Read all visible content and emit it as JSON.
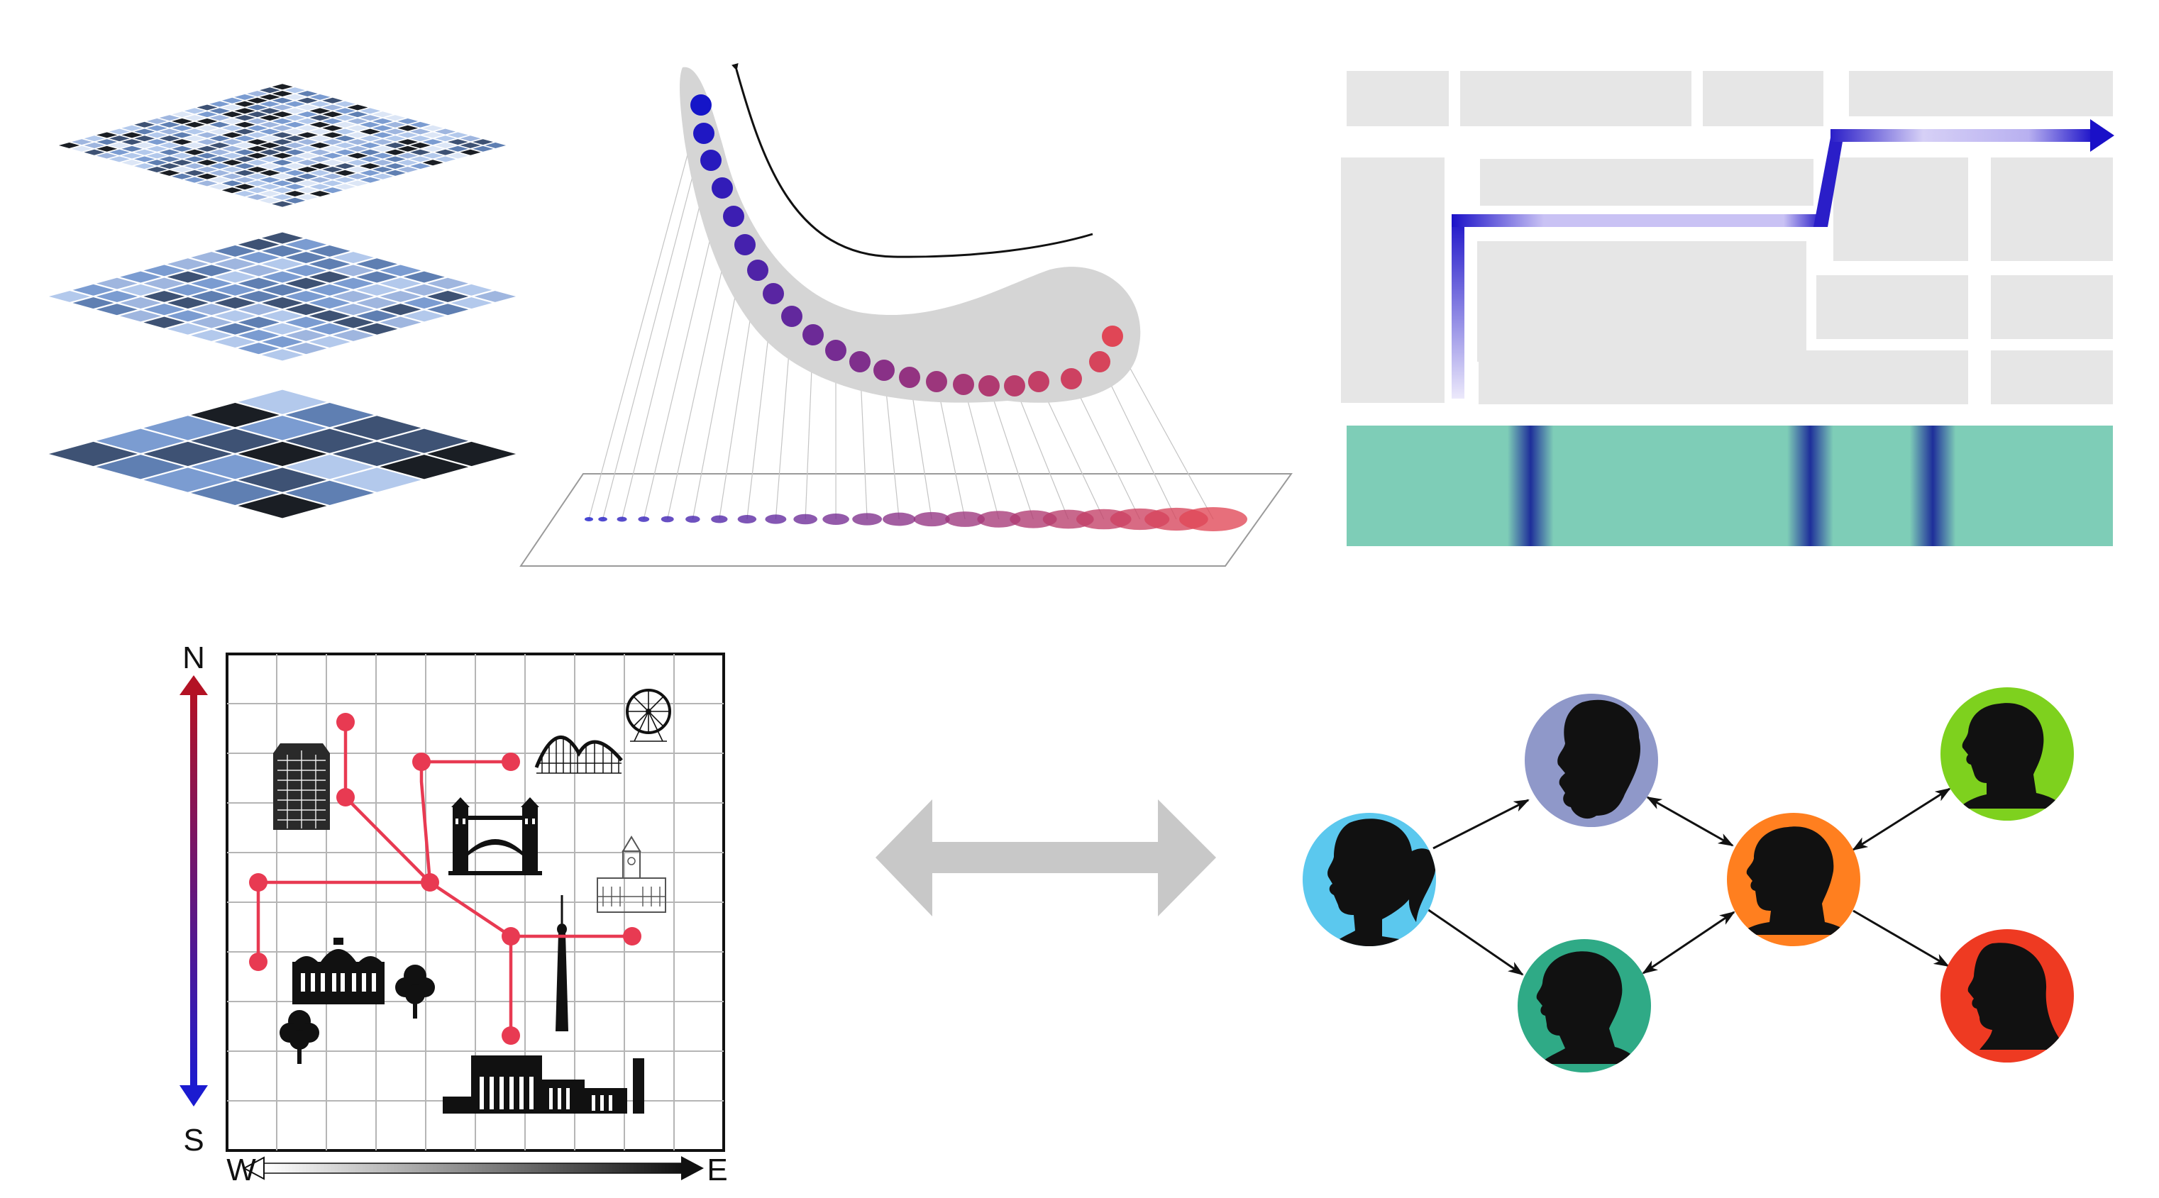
{
  "compass": {
    "north": "N",
    "south": "S",
    "west": "W",
    "east": "E"
  },
  "colors": {
    "tile_light": "#b3c9ec",
    "tile_mid": "#7b9cd1",
    "tile_dark": "#3e5274",
    "tile_black": "#1a1e24",
    "curve_start": "#1515c8",
    "curve_end": "#e04656",
    "road_gray": "#e6e6e6",
    "route_dark": "#1a10c8",
    "route_light": "#c9c2f4",
    "strip_green": "#7ecdb7",
    "strip_band": "#1e2f9a",
    "map_route": "#e83a52",
    "axis_north": "#b31224",
    "axis_south": "#1b1bd0",
    "bidirectional_arrow": "#c8c8c8",
    "person_blue": "#5bc8ee",
    "person_lavender": "#8f98c9",
    "person_orange": "#ff7f1f",
    "person_green": "#7ed11e",
    "person_teal": "#2faa86",
    "person_red": "#ee3a22"
  },
  "icons": {
    "map_landmarks": [
      "office-tower-icon",
      "tower-bridge-icon",
      "roller-coaster-icon",
      "ferris-wheel-icon",
      "clock-tower-hall-icon",
      "cn-tower-icon",
      "station-building-icon",
      "tree-icon",
      "museum-building-icon"
    ],
    "network_nodes": [
      "woman-ponytail-silhouette-icon",
      "woman-curly-silhouette-icon",
      "man-silhouette-icon",
      "man-short-hair-silhouette-icon",
      "man-hood-silhouette-icon",
      "man-long-hair-silhouette-icon"
    ]
  }
}
